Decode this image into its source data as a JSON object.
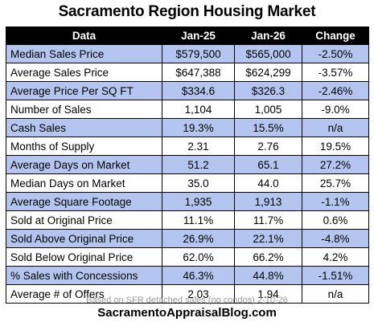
{
  "title": "Sacramento Region Housing Market",
  "colors": {
    "header_bg": "#000000",
    "header_text": "#ffffff",
    "row_shade": "#b4c6ef",
    "row_plain": "#ffffff"
  },
  "table": {
    "headers": [
      "Data",
      "Jan-25",
      "Jan-26",
      "Change"
    ],
    "rows": [
      {
        "label": "Median Sales Price",
        "jan25": "$579,500",
        "jan26": "$565,000",
        "change": "-2.50%",
        "shaded": true
      },
      {
        "label": "Average Sales Price",
        "jan25": "$647,388",
        "jan26": "$624,299",
        "change": "-3.57%",
        "shaded": false
      },
      {
        "label": "Average Price Per SQ FT",
        "jan25": "$334.6",
        "jan26": "$326.3",
        "change": "-2.46%",
        "shaded": true
      },
      {
        "label": "Number of Sales",
        "jan25": "1,104",
        "jan26": "1,005",
        "change": "-9.0%",
        "shaded": false
      },
      {
        "label": "Cash Sales",
        "jan25": "19.3%",
        "jan26": "15.5%",
        "change": "n/a",
        "shaded": true
      },
      {
        "label": "Months of Supply",
        "jan25": "2.31",
        "jan26": "2.76",
        "change": "19.5%",
        "shaded": false
      },
      {
        "label": "Average Days on Market",
        "jan25": "51.2",
        "jan26": "65.1",
        "change": "27.2%",
        "shaded": true
      },
      {
        "label": "Median Days on Market",
        "jan25": "35.0",
        "jan26": "44.0",
        "change": "25.7%",
        "shaded": false
      },
      {
        "label": "Average Square Footage",
        "jan25": "1,935",
        "jan26": "1,913",
        "change": "-1.1%",
        "shaded": true
      },
      {
        "label": "Sold at Original Price",
        "jan25": "11.1%",
        "jan26": "11.7%",
        "change": "0.6%",
        "shaded": false
      },
      {
        "label": "Sold Above Original Price",
        "jan25": "26.9%",
        "jan26": "22.1%",
        "change": "-4.8%",
        "shaded": true
      },
      {
        "label": "Sold Below Original Price",
        "jan25": "62.0%",
        "jan26": "66.2%",
        "change": "4.2%",
        "shaded": false
      },
      {
        "label": "% Sales with Concessions",
        "jan25": "46.3%",
        "jan26": "44.8%",
        "change": "-1.51%",
        "shaded": true
      },
      {
        "label": "Average # of Offers",
        "jan25": "2.03",
        "jan26": "1.94",
        "change": "n/a",
        "shaded": false
      }
    ]
  },
  "footnote": "Based on SFR detached sales (no condos) 2-10-26",
  "website": "SacramentoAppraisalBlog.com"
}
